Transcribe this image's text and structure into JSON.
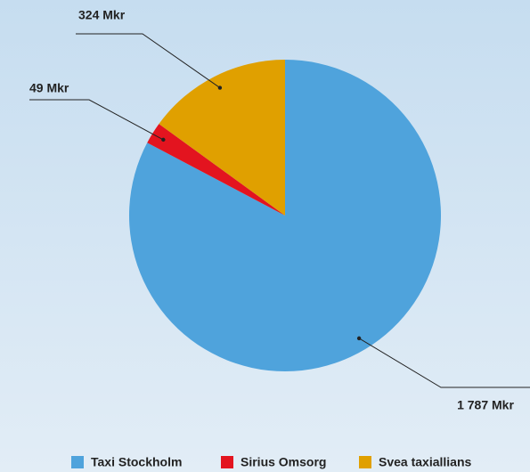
{
  "chart_data": {
    "type": "pie",
    "categories": [
      "Taxi Stockholm",
      "Sirius Omsorg",
      "Svea taxiallians"
    ],
    "values": [
      1787,
      49,
      324
    ],
    "value_labels": [
      "1 787 Mkr",
      "49 Mkr",
      "324 Mkr"
    ],
    "colors": [
      "#4fa3dc",
      "#e3141f",
      "#e0a000"
    ],
    "legend": "bottom"
  }
}
